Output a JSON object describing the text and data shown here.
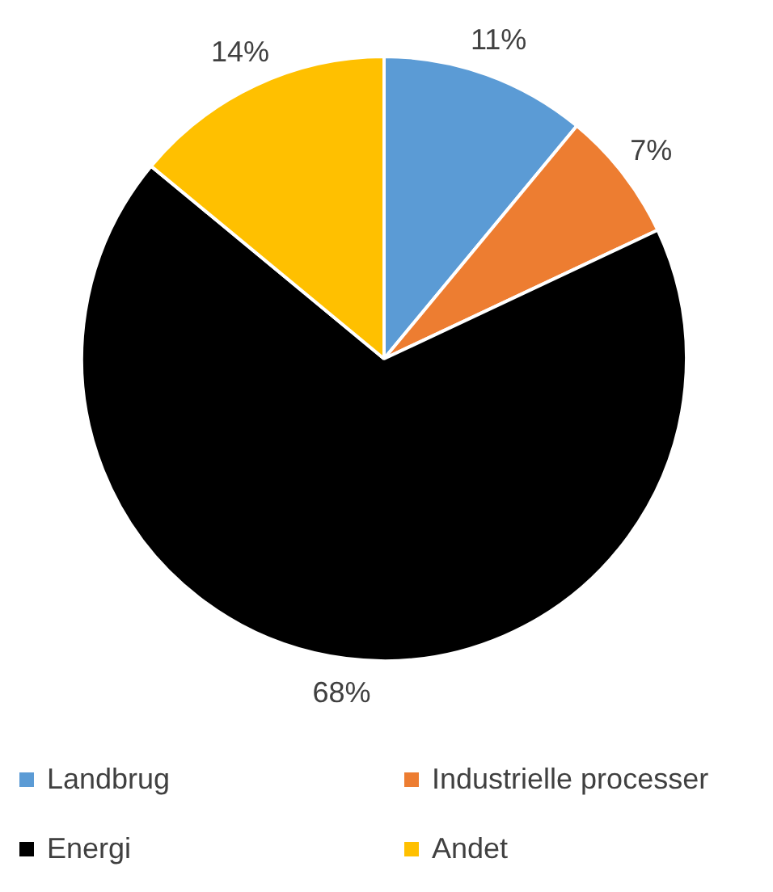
{
  "chart_data": {
    "type": "pie",
    "categories": [
      "Landbrug",
      "Industrielle processer",
      "Energi",
      "Andet"
    ],
    "values": [
      11,
      7,
      68,
      14
    ],
    "colors": [
      "#5b9bd5",
      "#ed7d31",
      "#000000",
      "#ffc000"
    ],
    "value_labels": [
      "11%",
      "7%",
      "68%",
      "14%"
    ],
    "legend": "bottom"
  }
}
